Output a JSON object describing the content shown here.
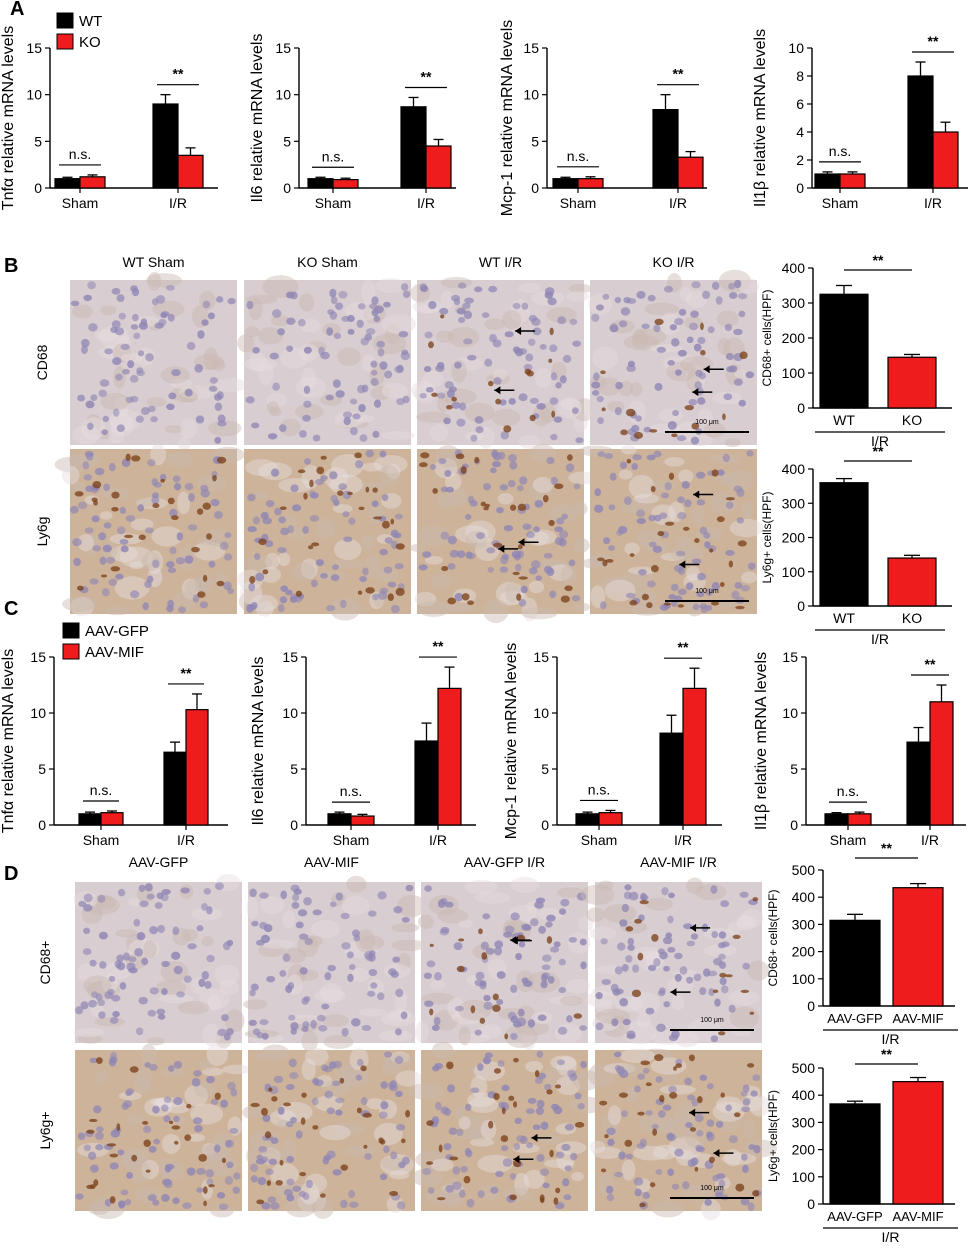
{
  "panel_letters": [
    "A",
    "B",
    "C",
    "D"
  ],
  "colors": {
    "black_bar": "#000000",
    "red_bar": "#ee1c1c",
    "tissue_base": "#c4b2ad"
  },
  "chart_data": [
    {
      "id": "A1",
      "type": "bar",
      "ylabel": "Tnfα relative mRNA levels",
      "categories": [
        "Sham",
        "I/R"
      ],
      "ylim": [
        0,
        15
      ],
      "yticks": [
        0,
        5,
        10,
        15
      ],
      "series": [
        {
          "name": "WT",
          "color": "#000000",
          "values": [
            1.0,
            9.0
          ],
          "errors": [
            0.15,
            1.0
          ]
        },
        {
          "name": "KO",
          "color": "#ee1c1c",
          "values": [
            1.2,
            3.5
          ],
          "errors": [
            0.2,
            0.8
          ]
        }
      ],
      "annotations": [
        "n.s.",
        "**"
      ],
      "legend": "top-left"
    },
    {
      "id": "A2",
      "type": "bar",
      "ylabel": "Il6 relative mRNA levels",
      "categories": [
        "Sham",
        "I/R"
      ],
      "ylim": [
        0,
        15
      ],
      "yticks": [
        0,
        5,
        10,
        15
      ],
      "series": [
        {
          "name": "WT",
          "color": "#000000",
          "values": [
            1.0,
            8.7
          ],
          "errors": [
            0.15,
            1.0
          ]
        },
        {
          "name": "KO",
          "color": "#ee1c1c",
          "values": [
            0.9,
            4.5
          ],
          "errors": [
            0.15,
            0.7
          ]
        }
      ],
      "annotations": [
        "n.s.",
        "**"
      ]
    },
    {
      "id": "A3",
      "type": "bar",
      "ylabel": "Mcp-1 relative mRNA levels",
      "categories": [
        "Sham",
        "I/R"
      ],
      "ylim": [
        0,
        15
      ],
      "yticks": [
        0,
        5,
        10,
        15
      ],
      "series": [
        {
          "name": "WT",
          "color": "#000000",
          "values": [
            1.0,
            8.4
          ],
          "errors": [
            0.15,
            1.6
          ]
        },
        {
          "name": "KO",
          "color": "#ee1c1c",
          "values": [
            1.0,
            3.3
          ],
          "errors": [
            0.2,
            0.6
          ]
        }
      ],
      "annotations": [
        "n.s.",
        "**"
      ]
    },
    {
      "id": "A4",
      "type": "bar",
      "ylabel": "Il1β relative mRNA levels",
      "categories": [
        "Sham",
        "I/R"
      ],
      "ylim": [
        0,
        10
      ],
      "yticks": [
        0,
        2,
        4,
        6,
        8,
        10
      ],
      "series": [
        {
          "name": "WT",
          "color": "#000000",
          "values": [
            1.0,
            8.0
          ],
          "errors": [
            0.15,
            1.0
          ]
        },
        {
          "name": "KO",
          "color": "#ee1c1c",
          "values": [
            1.0,
            4.0
          ],
          "errors": [
            0.15,
            0.7
          ]
        }
      ],
      "annotations": [
        "n.s.",
        "**"
      ]
    },
    {
      "id": "B1",
      "type": "bar",
      "ylabel": "CD68+ cells(HPF)",
      "categories": [
        "WT",
        "KO"
      ],
      "group_label": "I/R",
      "ylim": [
        0,
        400
      ],
      "yticks": [
        0,
        100,
        200,
        300,
        400
      ],
      "values": [
        325,
        145
      ],
      "errors": [
        25,
        8
      ],
      "colors": [
        "#000000",
        "#ee1c1c"
      ],
      "annotations": [
        "**"
      ]
    },
    {
      "id": "B2",
      "type": "bar",
      "ylabel": "Ly6g+ cells(HPF)",
      "categories": [
        "WT",
        "KO"
      ],
      "group_label": "I/R",
      "ylim": [
        0,
        400
      ],
      "yticks": [
        0,
        100,
        200,
        300,
        400
      ],
      "values": [
        360,
        140
      ],
      "errors": [
        12,
        8
      ],
      "colors": [
        "#000000",
        "#ee1c1c"
      ],
      "annotations": [
        "**"
      ]
    },
    {
      "id": "C1",
      "type": "bar",
      "ylabel": "Tnfα relative mRNA levels",
      "categories": [
        "Sham",
        "I/R"
      ],
      "ylim": [
        0,
        15
      ],
      "yticks": [
        0,
        5,
        10,
        15
      ],
      "series": [
        {
          "name": "AAV-GFP",
          "color": "#000000",
          "values": [
            1.0,
            6.5
          ],
          "errors": [
            0.15,
            0.9
          ]
        },
        {
          "name": "AAV-MIF",
          "color": "#ee1c1c",
          "values": [
            1.1,
            10.3
          ],
          "errors": [
            0.15,
            1.4
          ]
        }
      ],
      "annotations": [
        "n.s.",
        "**"
      ],
      "legend": "top-left"
    },
    {
      "id": "C2",
      "type": "bar",
      "ylabel": "Il6 relative mRNA levels",
      "categories": [
        "Sham",
        "I/R"
      ],
      "ylim": [
        0,
        15
      ],
      "yticks": [
        0,
        5,
        10,
        15
      ],
      "series": [
        {
          "name": "AAV-GFP",
          "color": "#000000",
          "values": [
            1.0,
            7.5
          ],
          "errors": [
            0.15,
            1.6
          ]
        },
        {
          "name": "AAV-MIF",
          "color": "#ee1c1c",
          "values": [
            0.8,
            12.2
          ],
          "errors": [
            0.15,
            1.9
          ]
        }
      ],
      "annotations": [
        "n.s.",
        "**"
      ]
    },
    {
      "id": "C3",
      "type": "bar",
      "ylabel": "Mcp-1 relative mRNA levels",
      "categories": [
        "Sham",
        "I/R"
      ],
      "ylim": [
        0,
        15
      ],
      "yticks": [
        0,
        5,
        10,
        15
      ],
      "series": [
        {
          "name": "AAV-GFP",
          "color": "#000000",
          "values": [
            1.0,
            8.2
          ],
          "errors": [
            0.15,
            1.6
          ]
        },
        {
          "name": "AAV-MIF",
          "color": "#ee1c1c",
          "values": [
            1.1,
            12.2
          ],
          "errors": [
            0.2,
            1.8
          ]
        }
      ],
      "annotations": [
        "n.s.",
        "**"
      ]
    },
    {
      "id": "C4",
      "type": "bar",
      "ylabel": "Il1β relative mRNA levels",
      "categories": [
        "Sham",
        "I/R"
      ],
      "ylim": [
        0,
        15
      ],
      "yticks": [
        0,
        5,
        10,
        15
      ],
      "series": [
        {
          "name": "AAV-GFP",
          "color": "#000000",
          "values": [
            1.0,
            7.4
          ],
          "errors": [
            0.1,
            1.3
          ]
        },
        {
          "name": "AAV-MIF",
          "color": "#ee1c1c",
          "values": [
            1.0,
            11.0
          ],
          "errors": [
            0.15,
            1.5
          ]
        }
      ],
      "annotations": [
        "n.s.",
        "**"
      ]
    },
    {
      "id": "D1",
      "type": "bar",
      "ylabel": "CD68+ cells(HPF)",
      "categories": [
        "AAV-GFP",
        "AAV-MIF"
      ],
      "group_label": "I/R",
      "ylim": [
        0,
        500
      ],
      "yticks": [
        0,
        100,
        200,
        300,
        400,
        500
      ],
      "values": [
        315,
        435
      ],
      "errors": [
        22,
        15
      ],
      "colors": [
        "#000000",
        "#ee1c1c"
      ],
      "annotations": [
        "**"
      ]
    },
    {
      "id": "D2",
      "type": "bar",
      "ylabel": "Ly6g+ cells(HPF)",
      "categories": [
        "AAV-GFP",
        "AAV-MIF"
      ],
      "group_label": "I/R",
      "ylim": [
        0,
        500
      ],
      "yticks": [
        0,
        100,
        200,
        300,
        400,
        500
      ],
      "values": [
        368,
        450
      ],
      "errors": [
        10,
        15
      ],
      "colors": [
        "#000000",
        "#ee1c1c"
      ],
      "annotations": [
        "**"
      ]
    }
  ],
  "micrographs": {
    "B": {
      "column_labels": [
        "WT Sham",
        "KO Sham",
        "WT I/R",
        "KO I/R"
      ],
      "row_labels": [
        "CD68",
        "Ly6g"
      ],
      "scale_bar": "100 μm",
      "arrow_counts": [
        [
          0,
          0,
          2,
          2
        ],
        [
          0,
          0,
          2,
          2
        ]
      ]
    },
    "D": {
      "column_labels": [
        "AAV-GFP",
        "AAV-MIF",
        "AAV-GFP I/R",
        "AAV-MIF I/R"
      ],
      "row_labels": [
        "CD68+",
        "Ly6g+"
      ],
      "scale_bar": "100 μm",
      "arrow_counts": [
        [
          0,
          0,
          2,
          2
        ],
        [
          0,
          0,
          2,
          2
        ]
      ]
    }
  }
}
